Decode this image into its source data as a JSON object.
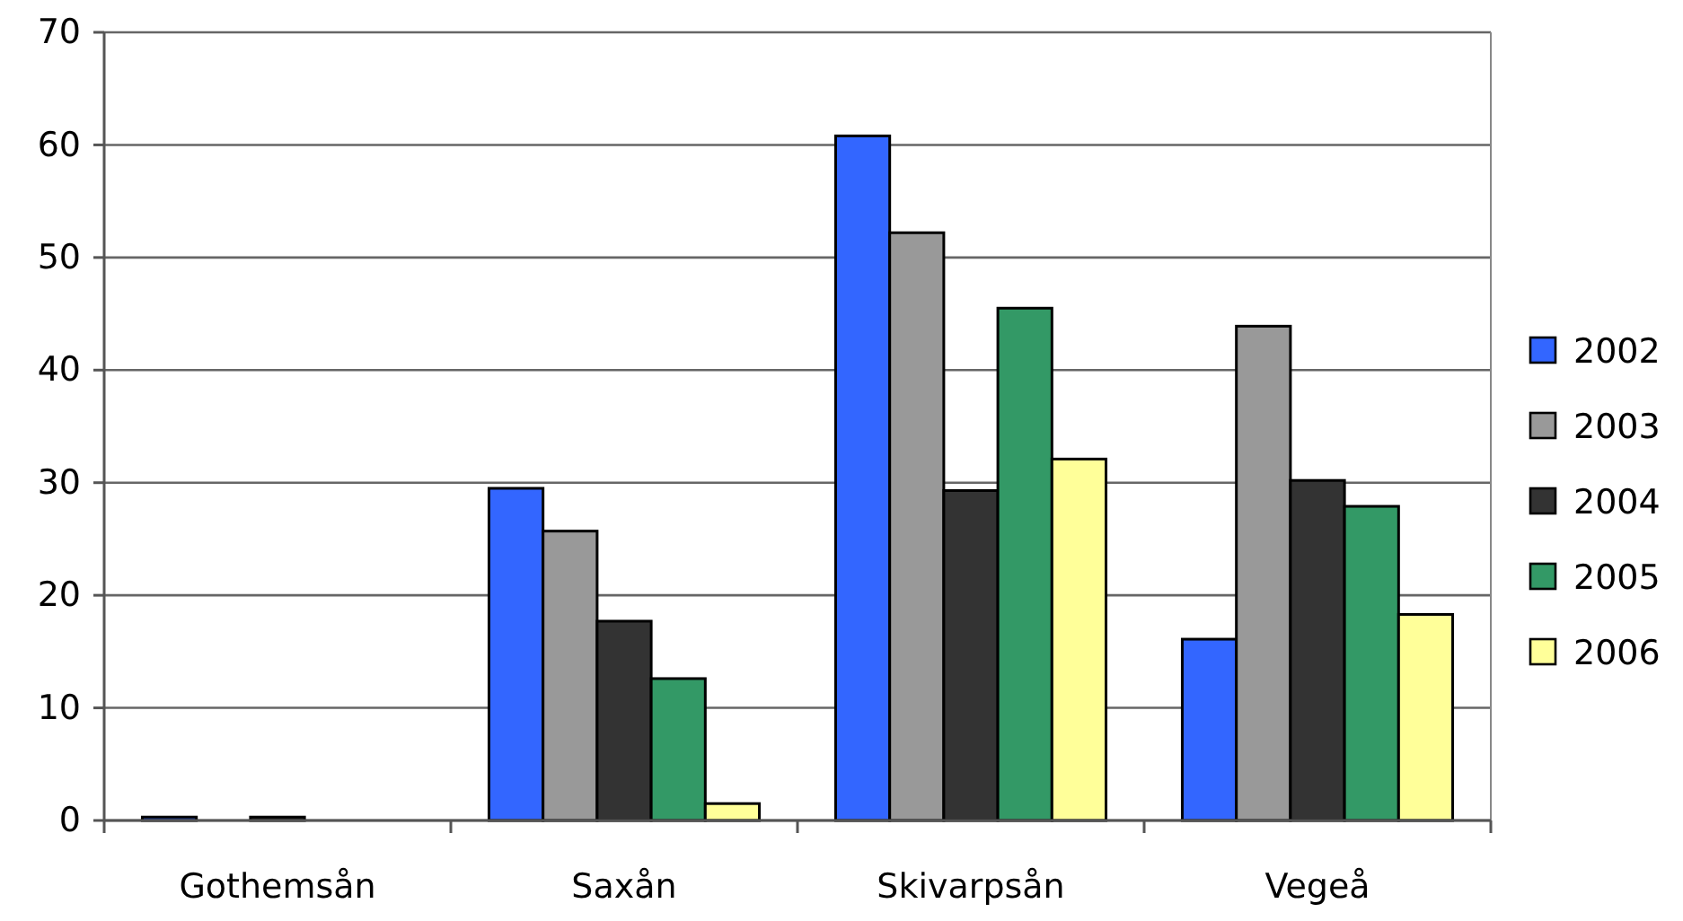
{
  "chart_data": {
    "type": "bar",
    "categories": [
      "Gothemsån",
      "Saxån",
      "Skivarpsån",
      "Vegeå"
    ],
    "series": [
      {
        "name": "2002",
        "color": "#3366ff",
        "values": [
          0.3,
          29.5,
          60.8,
          16.1
        ]
      },
      {
        "name": "2003",
        "color": "#999999",
        "values": [
          0,
          25.7,
          52.2,
          43.9
        ]
      },
      {
        "name": "2004",
        "color": "#333333",
        "values": [
          0.3,
          17.7,
          29.3,
          30.2
        ]
      },
      {
        "name": "2005",
        "color": "#339966",
        "values": [
          0,
          12.6,
          45.5,
          27.9
        ]
      },
      {
        "name": "2006",
        "color": "#ffff99",
        "values": [
          0,
          1.5,
          32.1,
          18.3
        ]
      }
    ],
    "ylim": [
      0,
      70
    ],
    "yticks": [
      0,
      10,
      20,
      30,
      40,
      50,
      60,
      70
    ],
    "grid": "y",
    "legend": "right"
  }
}
